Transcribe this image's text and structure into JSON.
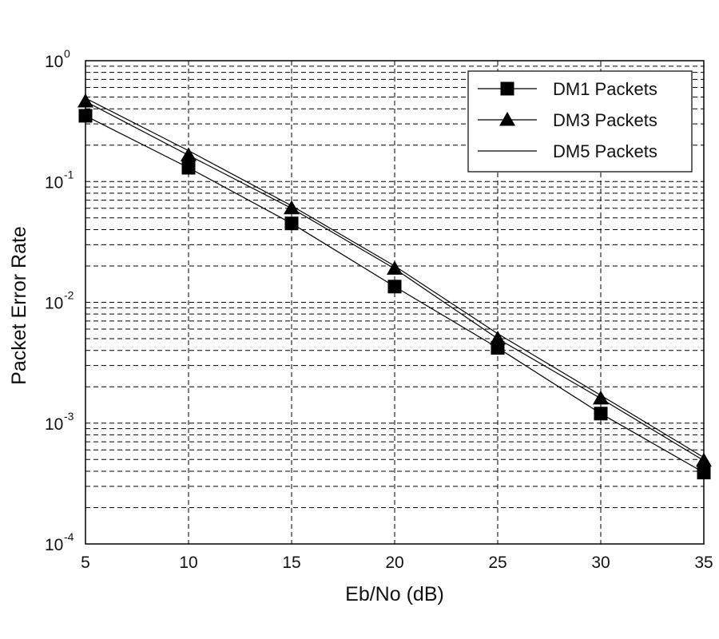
{
  "chart_data": {
    "type": "line",
    "xlabel": "Eb/No (dB)",
    "ylabel": "Packet Error Rate",
    "x": [
      5,
      10,
      15,
      20,
      25,
      30,
      35
    ],
    "xlim": [
      5,
      35
    ],
    "ylim": [
      0.0001,
      1
    ],
    "yscale": "log",
    "x_tick_labels": [
      "5",
      "10",
      "15",
      "20",
      "25",
      "30",
      "35"
    ],
    "y_ticks": [
      {
        "value": 1,
        "base": "10",
        "exp": "0"
      },
      {
        "value": 0.1,
        "base": "10",
        "exp": "-1"
      },
      {
        "value": 0.01,
        "base": "10",
        "exp": "-2"
      },
      {
        "value": 0.001,
        "base": "10",
        "exp": "-3"
      },
      {
        "value": 0.0001,
        "base": "10",
        "exp": "-4"
      }
    ],
    "grid": true,
    "legend_position": "top-right",
    "series": [
      {
        "name": "DM1 Packets",
        "marker": "square",
        "values": [
          0.35,
          0.13,
          0.045,
          0.0135,
          0.0042,
          0.0012,
          0.00039
        ]
      },
      {
        "name": "DM3 Packets",
        "marker": "triangle",
        "values": [
          0.46,
          0.165,
          0.06,
          0.019,
          0.005,
          0.0016,
          0.00049
        ]
      },
      {
        "name": "DM5 Packets",
        "marker": "none",
        "values": [
          0.49,
          0.18,
          0.063,
          0.02,
          0.0055,
          0.0017,
          0.00052
        ]
      }
    ]
  }
}
